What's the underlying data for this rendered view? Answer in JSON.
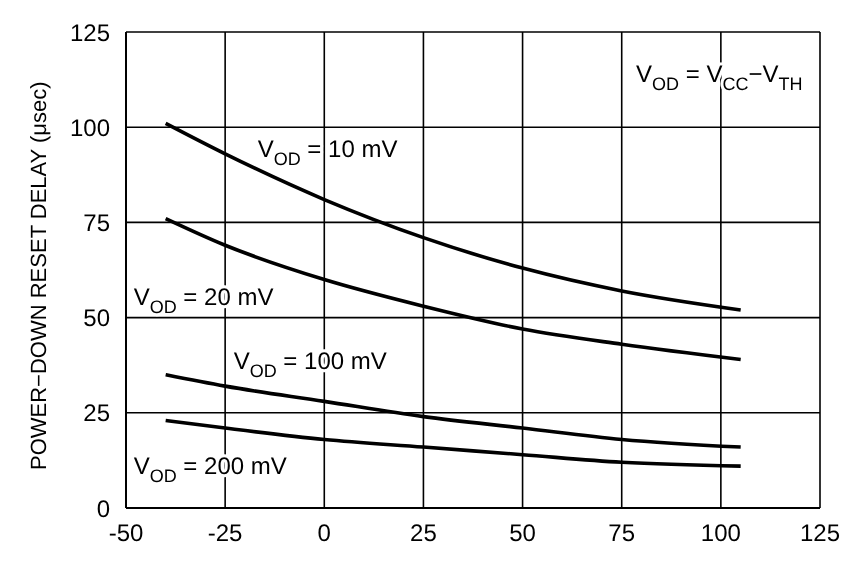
{
  "chart_data": {
    "type": "line",
    "ylabel": "POWER−DOWN RESET DELAY (μsec)",
    "x": [
      -40,
      -25,
      0,
      25,
      50,
      75,
      105
    ],
    "series": [
      {
        "name": "V$_{OD}$ = 10 mV",
        "color": "#000000",
        "values": [
          101,
          93,
          81,
          71,
          63,
          57,
          52
        ]
      },
      {
        "name": "V$_{OD}$ = 20 mV",
        "color": "#000000",
        "values": [
          76,
          69,
          60,
          53,
          47,
          43,
          39
        ]
      },
      {
        "name": "V$_{OD}$ = 100 mV",
        "color": "#000000",
        "values": [
          35,
          32,
          28,
          24,
          21,
          18,
          16
        ]
      },
      {
        "name": "V$_{OD}$ = 200 mV",
        "color": "#000000",
        "values": [
          23,
          21,
          18,
          16,
          14,
          12,
          11
        ]
      }
    ],
    "annotations": [
      "V$_{OD}$ = V$_{CC}$−V$_{TH}$"
    ],
    "xlim": [
      -50,
      125
    ],
    "xticks": [
      -50,
      -25,
      0,
      25,
      50,
      75,
      100,
      125
    ],
    "ylim": [
      0,
      125
    ],
    "yticks": [
      0,
      25,
      50,
      75,
      100,
      125
    ],
    "grid": true,
    "marker": "none",
    "line_style": "solid",
    "legend": false
  }
}
